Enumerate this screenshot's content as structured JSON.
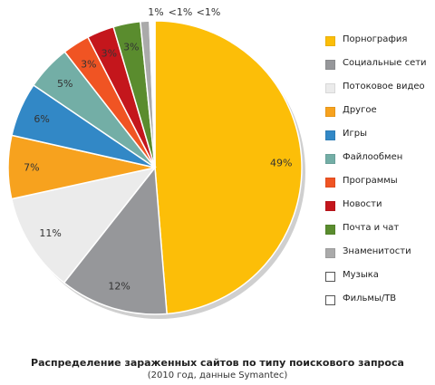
{
  "chart_data": {
    "type": "pie",
    "series": [
      {
        "label": "Порнография",
        "value": 49,
        "display": "49%",
        "color": "#FCBE08"
      },
      {
        "label": "Социальные сети",
        "value": 12,
        "display": "12%",
        "color": "#96979A"
      },
      {
        "label": "Потоковое видео",
        "value": 11,
        "display": "11%",
        "color": "#EBEBEB"
      },
      {
        "label": "Другое",
        "value": 7,
        "display": "7%",
        "color": "#F7A21E"
      },
      {
        "label": "Игры",
        "value": 6,
        "display": "6%",
        "color": "#3288C6"
      },
      {
        "label": "Файлообмен",
        "value": 5,
        "display": "5%",
        "color": "#73AEA6"
      },
      {
        "label": "Программы",
        "value": 3,
        "display": "3%",
        "color": "#F05423"
      },
      {
        "label": "Новости",
        "value": 3,
        "display": "3%",
        "color": "#C4161C"
      },
      {
        "label": "Почта и чат",
        "value": 3,
        "display": "3%",
        "color": "#5A8C2E"
      },
      {
        "label": "Знаменитости",
        "value": 1,
        "display": "1%",
        "color": "#AAAAAA"
      },
      {
        "label": "Музыка",
        "value": 0.3,
        "display": "<1%",
        "color": "#FFFFFF"
      },
      {
        "label": "Фильмы/ТВ",
        "value": 0.3,
        "display": "<1%",
        "color": "#FFFFFF"
      }
    ],
    "legend_position": "right",
    "title": "Распределение зараженных сайтов по типу поискового запроса",
    "subtitle": "(2010 год, данные Symantec)"
  }
}
